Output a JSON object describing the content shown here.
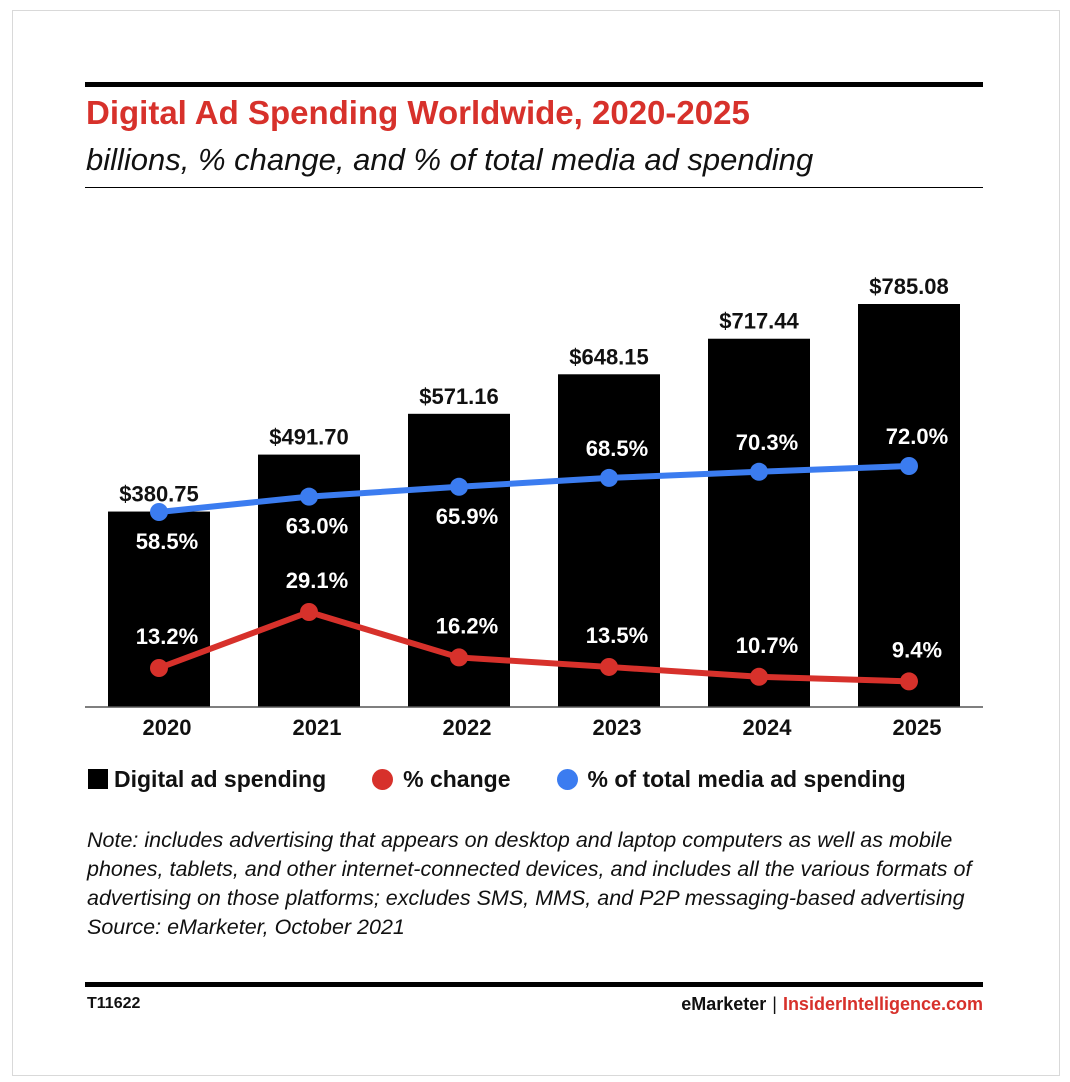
{
  "title": "Digital Ad Spending Worldwide, 2020-2025",
  "subtitle": "billions, % change, and % of total media ad spending",
  "legend": {
    "bar": "Digital ad spending",
    "change": "% change",
    "share": "% of total media ad spending"
  },
  "notes": {
    "note": "Note: includes advertising that appears on desktop and laptop computers as well as mobile phones, tablets, and other internet-connected devices, and includes all the various formats of advertising on those platforms; excludes SMS, MMS, and P2P messaging-based advertising",
    "source": "Source: eMarketer, October 2021"
  },
  "footer": {
    "id": "T11622",
    "brand": "eMarketer",
    "separator": "|",
    "site": "InsiderIntelligence.com"
  },
  "colors": {
    "title": "#d7312b",
    "bar": "#000000",
    "change": "#d7312b",
    "share": "#3b7cf0"
  },
  "chart_data": {
    "type": "bar",
    "categories": [
      "2020",
      "2021",
      "2022",
      "2023",
      "2024",
      "2025"
    ],
    "series": [
      {
        "name": "Digital ad spending",
        "kind": "bar",
        "values": [
          380.75,
          491.7,
          571.16,
          648.15,
          717.44,
          785.08
        ],
        "labels": [
          "$380.75",
          "$491.70",
          "$571.16",
          "$648.15",
          "$717.44",
          "$785.08"
        ]
      },
      {
        "name": "% of total media ad spending",
        "kind": "line",
        "values": [
          58.5,
          63.0,
          65.9,
          68.5,
          70.3,
          72.0
        ],
        "labels": [
          "58.5%",
          "63.0%",
          "65.9%",
          "68.5%",
          "70.3%",
          "72.0%"
        ]
      },
      {
        "name": "% change",
        "kind": "line",
        "values": [
          13.2,
          29.1,
          16.2,
          13.5,
          10.7,
          9.4
        ],
        "labels": [
          "13.2%",
          "29.1%",
          "16.2%",
          "13.5%",
          "10.7%",
          "9.4%"
        ]
      }
    ],
    "ylim": [
      0,
      800
    ],
    "grid": false,
    "legend_position": "bottom"
  }
}
